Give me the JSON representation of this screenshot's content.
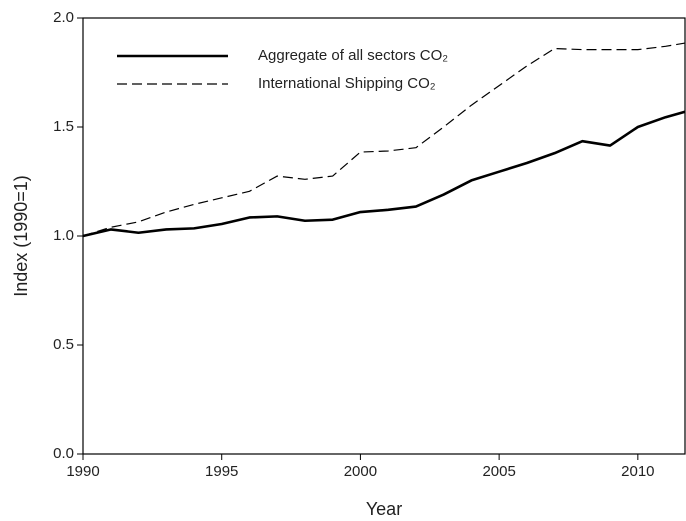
{
  "chart_data": {
    "type": "line",
    "xlabel": "Year",
    "ylabel": "Index (1990=1)",
    "x": [
      1990,
      1991,
      1992,
      1993,
      1994,
      1995,
      1996,
      1997,
      1998,
      1999,
      2000,
      2001,
      2002,
      2003,
      2004,
      2005,
      2006,
      2007,
      2008,
      2009,
      2010,
      2011,
      2011.7
    ],
    "series": [
      {
        "name": "Aggregate of all sectors CO₂",
        "color": "#000000",
        "dash": false,
        "values": [
          1.0,
          1.03,
          1.015,
          1.03,
          1.035,
          1.055,
          1.085,
          1.09,
          1.07,
          1.075,
          1.11,
          1.12,
          1.135,
          1.19,
          1.255,
          1.295,
          1.335,
          1.38,
          1.435,
          1.415,
          1.5,
          1.545,
          1.57
        ]
      },
      {
        "name": "International Shipping CO₂",
        "color": "#000000",
        "dash": true,
        "values": [
          1.0,
          1.04,
          1.065,
          1.11,
          1.145,
          1.175,
          1.205,
          1.275,
          1.26,
          1.275,
          1.385,
          1.39,
          1.405,
          1.5,
          1.6,
          1.69,
          1.78,
          1.86,
          1.855,
          1.855,
          1.855,
          1.87,
          1.885
        ]
      }
    ],
    "xlim": [
      1990,
      2011.7
    ],
    "xticks": [
      1990,
      1995,
      2000,
      2005,
      2010
    ],
    "ylim": [
      0,
      2.0
    ],
    "yticks": [
      {
        "value": 0,
        "label": "0.0"
      },
      0.5,
      {
        "value": 1.0,
        "label": "1.0"
      },
      1.5,
      {
        "value": 2.0,
        "label": "2.0"
      }
    ],
    "legend": "upper-left"
  }
}
